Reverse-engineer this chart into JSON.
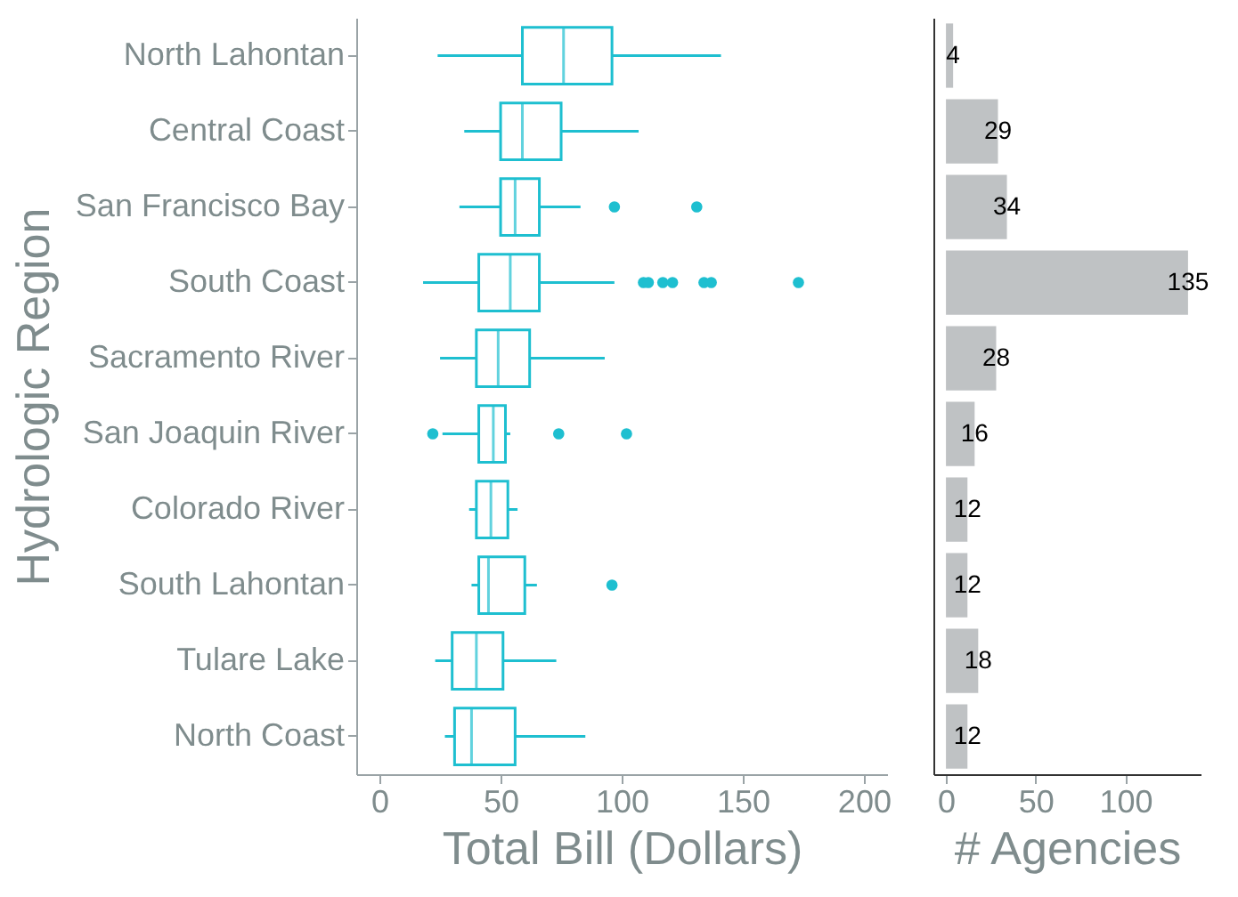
{
  "chart_data": [
    {
      "type": "box",
      "orientation": "horizontal",
      "xlabel": "Total Bill (Dollars)",
      "ylabel": "Hydrologic Region",
      "categories": [
        "North Lahontan",
        "Central Coast",
        "San Francisco Bay",
        "South Coast",
        "Sacramento River",
        "San Joaquin River",
        "Colorado River",
        "South Lahontan",
        "Tulare Lake",
        "North Coast"
      ],
      "color": "#1ebfd0",
      "xlim": [
        -9.6,
        209.6
      ],
      "xticks": [
        0,
        50,
        100,
        150,
        200
      ],
      "grid": false,
      "boxes": [
        {
          "low": 24,
          "q1": 59,
          "median": 76,
          "q3": 96,
          "high": 141
        },
        {
          "low": 35,
          "q1": 50,
          "median": 59,
          "q3": 75,
          "high": 107
        },
        {
          "low": 33,
          "q1": 50,
          "median": 56,
          "q3": 66,
          "high": 83,
          "outliers": [
            97,
            131
          ]
        },
        {
          "low": 18,
          "q1": 41,
          "median": 54,
          "q3": 66,
          "high": 97,
          "outliers": [
            109,
            111,
            117,
            121,
            134,
            137,
            173
          ]
        },
        {
          "low": 25,
          "q1": 40,
          "median": 49,
          "q3": 62,
          "high": 93
        },
        {
          "low": 26,
          "q1": 41,
          "median": 47,
          "q3": 52,
          "high": 54,
          "outliers": [
            22,
            74,
            102
          ]
        },
        {
          "low": 37,
          "q1": 40,
          "median": 46,
          "q3": 53,
          "high": 57
        },
        {
          "low": 38,
          "q1": 41,
          "median": 45,
          "q3": 60,
          "high": 65,
          "outliers": [
            96
          ]
        },
        {
          "low": 23,
          "q1": 30,
          "median": 40,
          "q3": 51,
          "high": 73
        },
        {
          "low": 27,
          "q1": 31,
          "median": 38,
          "q3": 56,
          "high": 85
        }
      ]
    },
    {
      "type": "bar",
      "orientation": "horizontal",
      "xlabel": "# Agencies",
      "categories": [
        null,
        null,
        null,
        null,
        null,
        null,
        null,
        null,
        null,
        null
      ],
      "values": [
        4,
        29,
        34,
        135,
        28,
        16,
        12,
        12,
        18,
        12
      ],
      "color": "#bfc2c4",
      "xlim": [
        -7,
        142
      ],
      "xticks": [
        0,
        50,
        100
      ],
      "data_labels": true,
      "tick_labels": "x",
      "grid": false
    }
  ]
}
